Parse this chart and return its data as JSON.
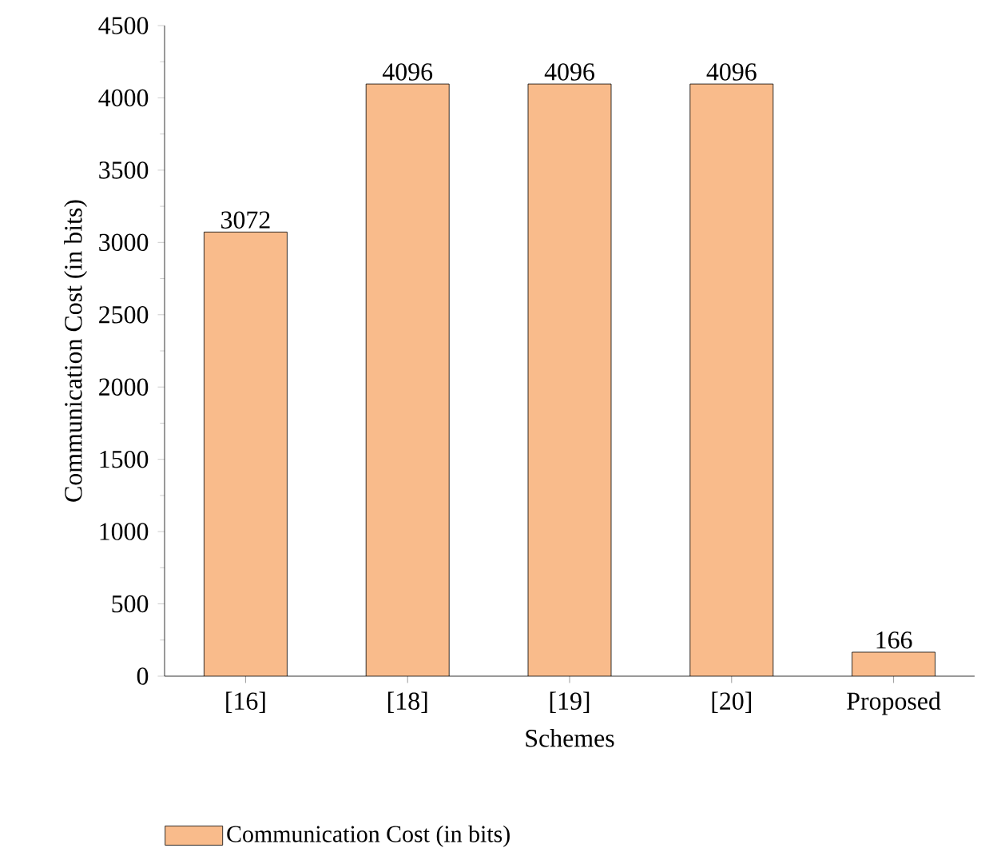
{
  "chart_data": {
    "type": "bar",
    "xlabel": "Schemes",
    "ylabel": "Communication Cost (in bits)",
    "categories": [
      "[16]",
      "[18]",
      "[19]",
      "[20]",
      "Proposed"
    ],
    "series": [
      {
        "name": "Communication Cost (in bits)",
        "color": "#f9bb8b",
        "values": [
          3072,
          4096,
          4096,
          4096,
          166
        ]
      }
    ],
    "ylim": [
      0,
      4500
    ],
    "yticks": [
      0,
      500,
      1000,
      1500,
      2000,
      2500,
      3000,
      3500,
      4000,
      4500
    ],
    "data_labels": true,
    "legend": "bottom"
  }
}
